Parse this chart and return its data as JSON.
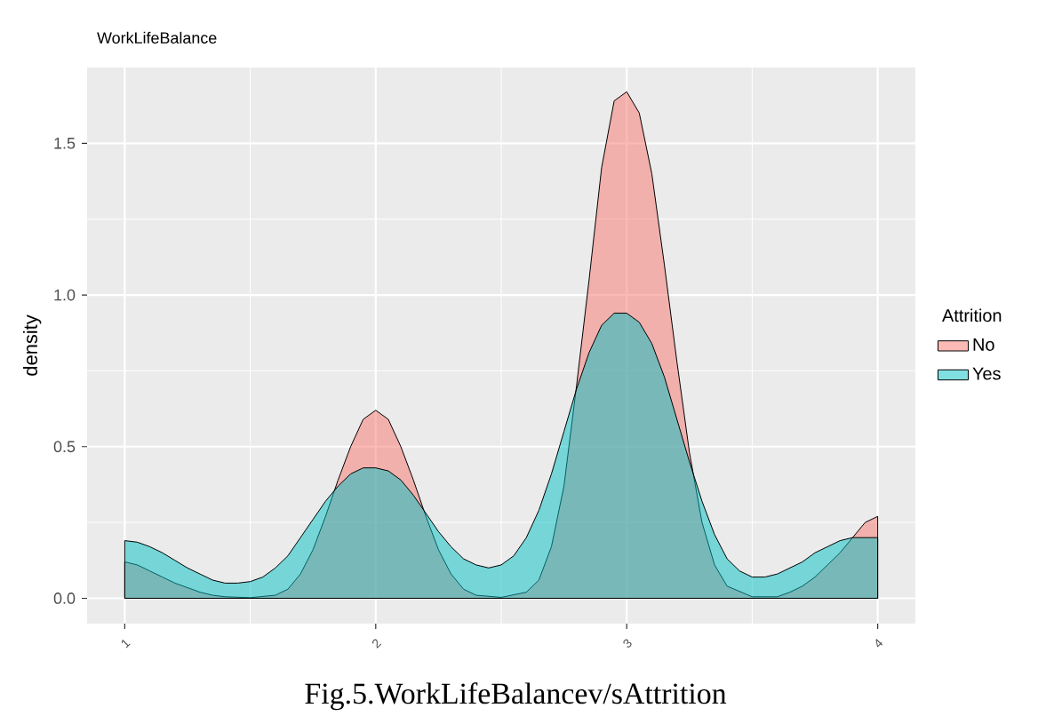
{
  "chart_data": {
    "type": "area",
    "title": "WorkLifeBalance",
    "ylabel": "density",
    "legend_title": "Attrition",
    "annotations": [
      "Fig.5.WorkLifeBalancev/sAttrition"
    ],
    "xlim": [
      0.85,
      4.15
    ],
    "ylim": [
      -0.0835,
      1.75
    ],
    "xticks": [
      1,
      2,
      3,
      4
    ],
    "yticks": [
      {
        "value": 0,
        "label": "0.0"
      },
      0.5,
      {
        "value": 1,
        "label": "1.0"
      },
      1.5
    ],
    "grid": true,
    "legend": "right",
    "series": [
      {
        "name": "No",
        "color": "#f8766d",
        "x": [
          1.0,
          1.05,
          1.1,
          1.15,
          1.2,
          1.25,
          1.3,
          1.35,
          1.4,
          1.5,
          1.6,
          1.65,
          1.7,
          1.75,
          1.8,
          1.85,
          1.9,
          1.95,
          2.0,
          2.05,
          2.1,
          2.15,
          2.2,
          2.25,
          2.3,
          2.35,
          2.4,
          2.5,
          2.6,
          2.65,
          2.7,
          2.75,
          2.8,
          2.85,
          2.9,
          2.95,
          3.0,
          3.05,
          3.1,
          3.15,
          3.2,
          3.25,
          3.3,
          3.35,
          3.4,
          3.5,
          3.6,
          3.65,
          3.7,
          3.75,
          3.8,
          3.85,
          3.9,
          3.95,
          4.0
        ],
        "values": [
          0.12,
          0.11,
          0.09,
          0.07,
          0.05,
          0.035,
          0.02,
          0.01,
          0.005,
          0.002,
          0.01,
          0.03,
          0.08,
          0.16,
          0.27,
          0.39,
          0.5,
          0.59,
          0.62,
          0.59,
          0.5,
          0.39,
          0.27,
          0.16,
          0.08,
          0.03,
          0.01,
          0.003,
          0.02,
          0.06,
          0.17,
          0.37,
          0.7,
          1.05,
          1.42,
          1.64,
          1.67,
          1.6,
          1.4,
          1.1,
          0.78,
          0.48,
          0.25,
          0.11,
          0.04,
          0.005,
          0.005,
          0.02,
          0.04,
          0.07,
          0.11,
          0.15,
          0.2,
          0.25,
          0.27
        ]
      },
      {
        "name": "Yes",
        "color": "#00bfc4",
        "x": [
          1.0,
          1.05,
          1.1,
          1.15,
          1.2,
          1.25,
          1.3,
          1.35,
          1.4,
          1.45,
          1.5,
          1.55,
          1.6,
          1.65,
          1.7,
          1.75,
          1.8,
          1.85,
          1.9,
          1.95,
          2.0,
          2.05,
          2.1,
          2.15,
          2.2,
          2.25,
          2.3,
          2.35,
          2.4,
          2.45,
          2.5,
          2.55,
          2.6,
          2.65,
          2.7,
          2.75,
          2.8,
          2.85,
          2.9,
          2.95,
          3.0,
          3.05,
          3.1,
          3.15,
          3.2,
          3.25,
          3.3,
          3.35,
          3.4,
          3.45,
          3.5,
          3.55,
          3.6,
          3.65,
          3.7,
          3.75,
          3.8,
          3.85,
          3.9,
          3.95,
          4.0
        ],
        "values": [
          0.19,
          0.185,
          0.17,
          0.15,
          0.125,
          0.1,
          0.08,
          0.06,
          0.05,
          0.05,
          0.055,
          0.07,
          0.1,
          0.14,
          0.2,
          0.26,
          0.32,
          0.37,
          0.41,
          0.43,
          0.43,
          0.42,
          0.39,
          0.34,
          0.28,
          0.22,
          0.17,
          0.13,
          0.11,
          0.1,
          0.11,
          0.14,
          0.2,
          0.29,
          0.41,
          0.55,
          0.69,
          0.81,
          0.9,
          0.94,
          0.94,
          0.91,
          0.84,
          0.73,
          0.59,
          0.45,
          0.32,
          0.21,
          0.13,
          0.09,
          0.07,
          0.07,
          0.08,
          0.1,
          0.12,
          0.15,
          0.17,
          0.19,
          0.2,
          0.2,
          0.2
        ]
      }
    ]
  }
}
